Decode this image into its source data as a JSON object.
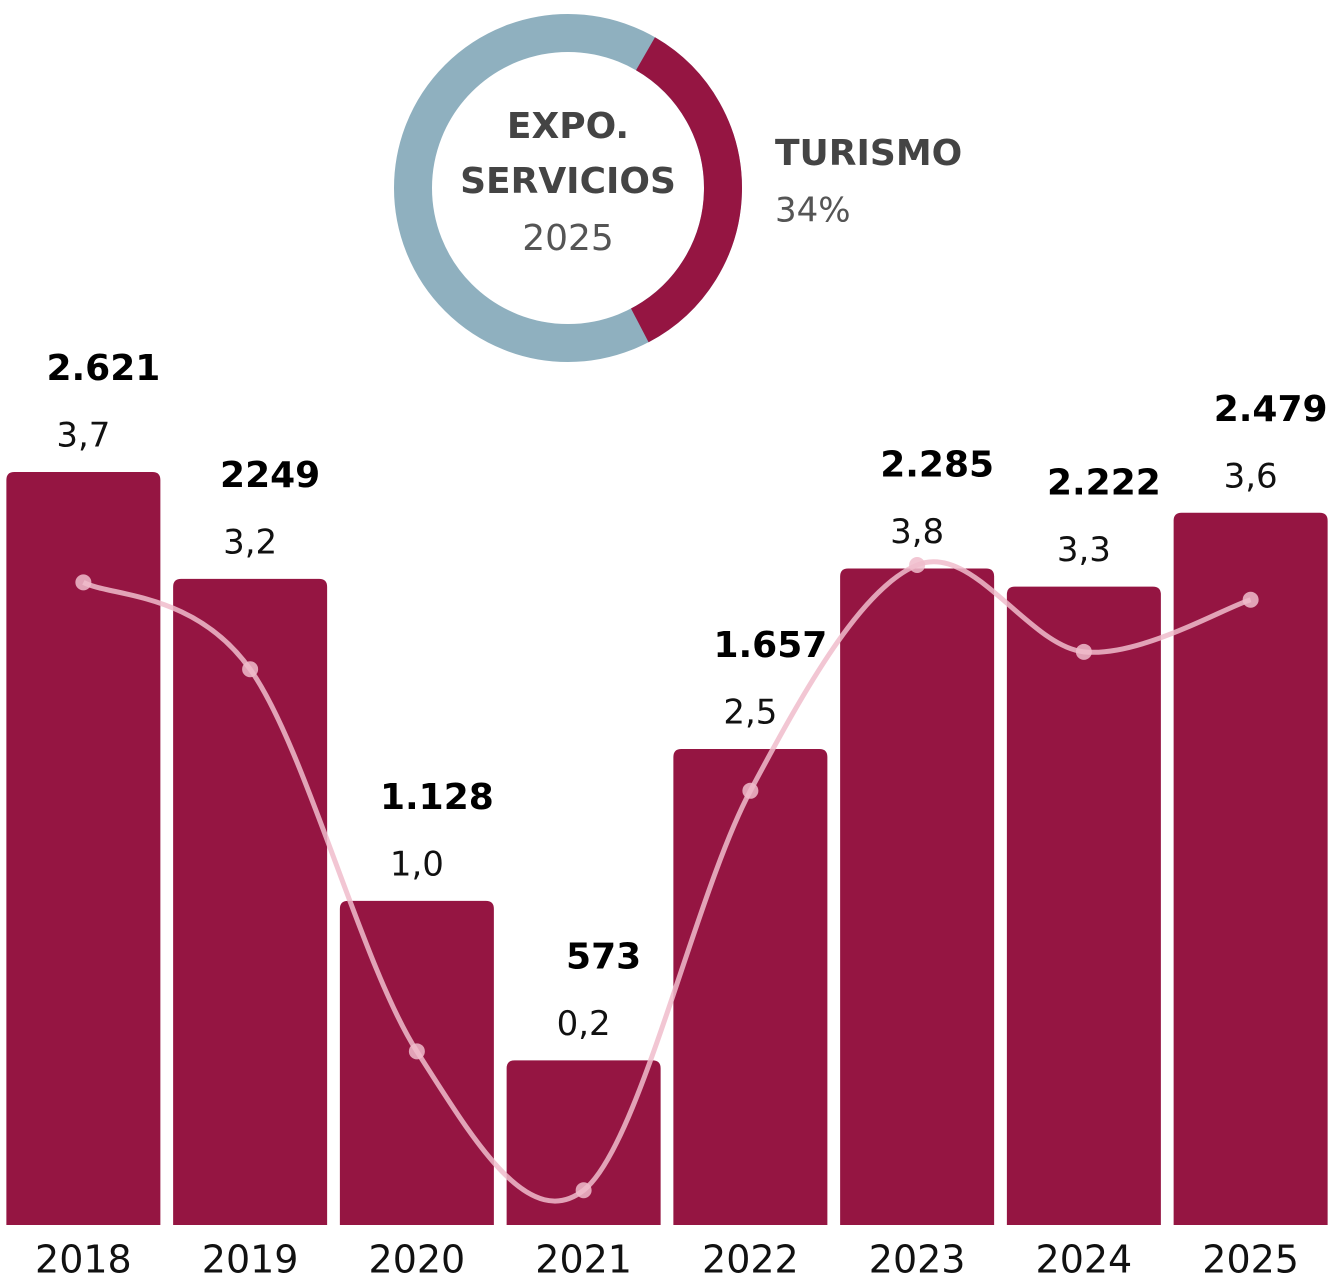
{
  "chart_data": [
    {
      "type": "donut",
      "center_title": [
        "EXPO.",
        "SERVICIOS"
      ],
      "center_subtitle": "2025",
      "categories": [
        "TURISMO"
      ],
      "values": [
        34
      ],
      "value_labels": [
        "34%"
      ],
      "color": "#951542",
      "track_color": "#8fb0bf"
    },
    {
      "type": "bar_line",
      "categories": [
        "2018",
        "2019",
        "2020",
        "2021",
        "2022",
        "2023",
        "2024",
        "2025"
      ],
      "bars": {
        "color": "#951542",
        "values": [
          2621,
          2249,
          1128,
          573,
          1657,
          2285,
          2222,
          2479
        ],
        "value_labels": [
          "2.621",
          "2249",
          "1.128",
          "573",
          "1.657",
          "2.285",
          "2.222",
          "2.479"
        ]
      },
      "line": {
        "color": "#f0bccb",
        "values": [
          3.7,
          3.2,
          1.0,
          0.2,
          2.5,
          3.8,
          3.3,
          3.6
        ],
        "value_labels": [
          "3,7",
          "3,2",
          "1,0",
          "0,2",
          "2,5",
          "3,8",
          "3,3",
          "3,6"
        ]
      }
    }
  ]
}
